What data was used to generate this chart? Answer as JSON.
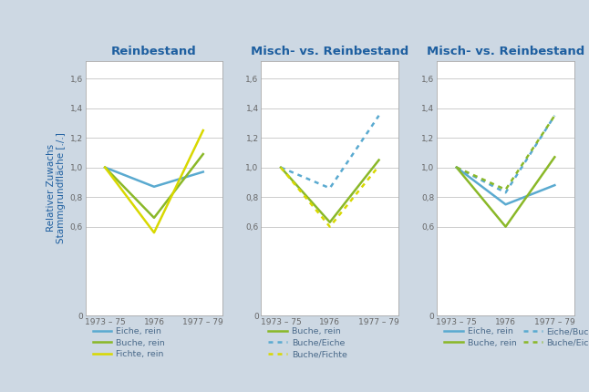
{
  "background_color": "#cdd8e3",
  "plot_bg_color": "#ffffff",
  "title_fontsize": 9.5,
  "title_color": "#1e5fa0",
  "ylabel": "Relativer Zuwachs\nStammgrundfläche [./.]",
  "ylabel_color": "#1e5fa0",
  "ylabel_fontsize": 7.5,
  "xtick_labels": [
    "1973 – 75",
    "1976",
    "1977 – 79"
  ],
  "ytick_labels": [
    "0",
    "0,6",
    "0,8",
    "1,0",
    "1,2",
    "1,4",
    "1,6"
  ],
  "ytick_values": [
    0,
    0.6,
    0.8,
    1.0,
    1.2,
    1.4,
    1.6
  ],
  "ylim": [
    0,
    1.72
  ],
  "titles": [
    "Reinbestand",
    "Misch- vs. Reinbestand",
    "Misch- vs. Reinbestand"
  ],
  "color_eiche": "#5aaad0",
  "color_buche": "#8ab828",
  "color_fichte": "#d8d800",
  "chart1": {
    "eiche_rein": [
      1.0,
      0.87,
      0.97
    ],
    "buche_rein": [
      1.0,
      0.66,
      1.09
    ],
    "fichte_rein": [
      1.0,
      0.56,
      1.25
    ]
  },
  "chart2": {
    "buche_rein": [
      1.0,
      0.63,
      1.05
    ],
    "buche_eiche": [
      1.0,
      0.86,
      1.35
    ],
    "buche_fichte": [
      1.0,
      0.6,
      1.01
    ]
  },
  "chart3": {
    "eiche_rein": [
      1.0,
      0.75,
      0.88
    ],
    "buche_rein": [
      1.0,
      0.6,
      1.07
    ],
    "eiche_buche": [
      1.0,
      0.83,
      1.35
    ],
    "buche_eiche": [
      1.0,
      0.85,
      1.35
    ]
  },
  "legend1": [
    {
      "label": "Eiche, rein",
      "color": "#5aaad0",
      "ls": "solid"
    },
    {
      "label": "Buche, rein",
      "color": "#8ab828",
      "ls": "solid"
    },
    {
      "label": "Fichte, rein",
      "color": "#d8d800",
      "ls": "solid"
    }
  ],
  "legend2": [
    {
      "label": "Buche, rein",
      "color": "#8ab828",
      "ls": "solid"
    },
    {
      "label": "Buche/Eiche",
      "color": "#5aaad0",
      "ls": "dotted"
    },
    {
      "label": "Buche/Fichte",
      "color": "#d8d800",
      "ls": "dotted"
    }
  ],
  "legend3": [
    {
      "label": "Eiche, rein",
      "color": "#5aaad0",
      "ls": "solid"
    },
    {
      "label": "Buche, rein",
      "color": "#8ab828",
      "ls": "solid"
    },
    {
      "label": "Eiche/Buche",
      "color": "#5aaad0",
      "ls": "dotted"
    },
    {
      "label": "Buche/Eiche",
      "color": "#8ab828",
      "ls": "dotted"
    }
  ],
  "legend_text_color": "#4a6a8a"
}
